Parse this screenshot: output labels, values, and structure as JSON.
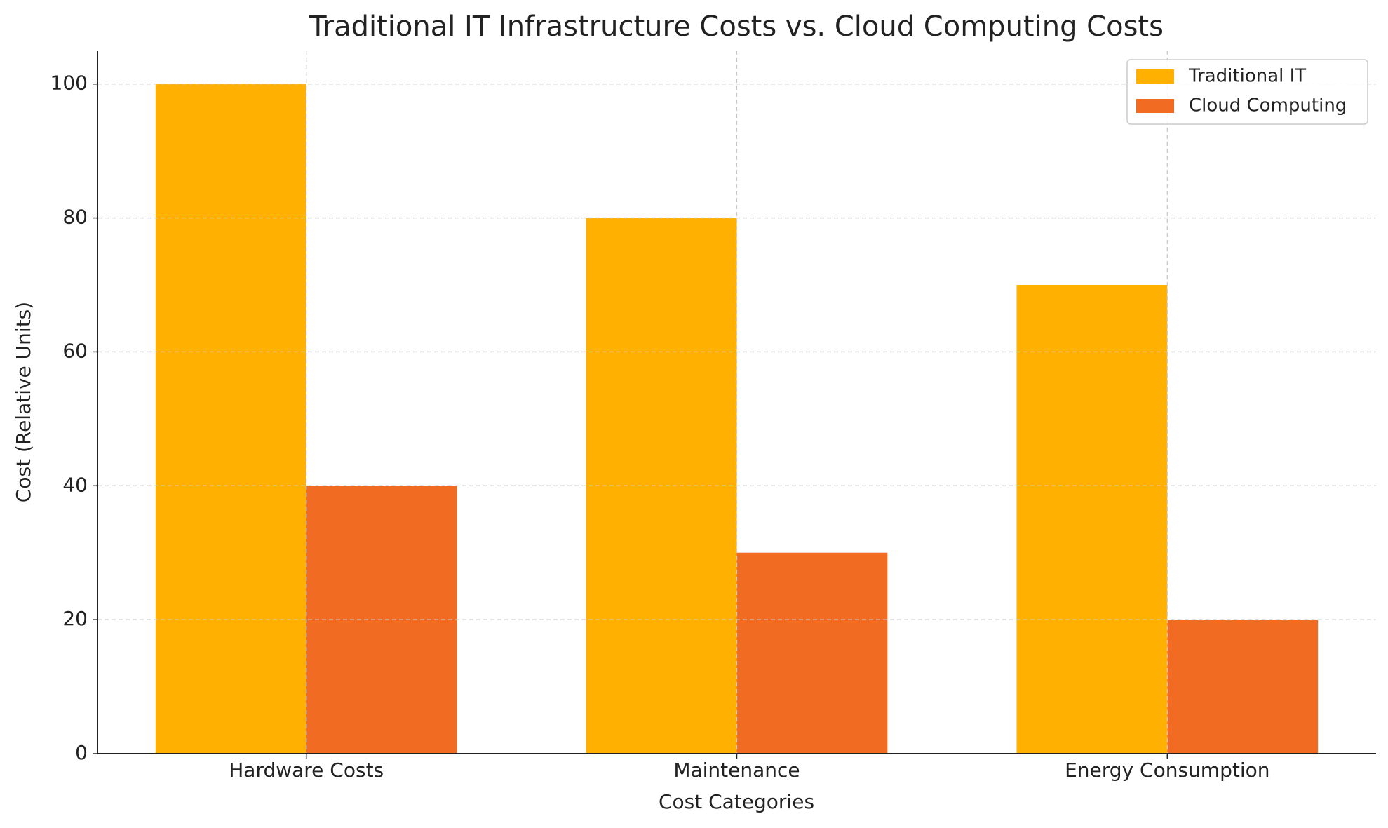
{
  "chart_data": {
    "type": "bar",
    "title": "Traditional IT Infrastructure Costs vs. Cloud Computing Costs",
    "x_label": "Cost Categories",
    "y_label": "Cost (Relative Units)",
    "categories": [
      "Hardware Costs",
      "Maintenance",
      "Energy Consumption"
    ],
    "series": [
      {
        "name": "Traditional IT",
        "color": "#ffb000",
        "values": [
          100,
          80,
          70
        ]
      },
      {
        "name": "Cloud Computing",
        "color": "#f26b23",
        "values": [
          40,
          30,
          20
        ]
      }
    ],
    "ylim": [
      0,
      105
    ],
    "yticks": [
      0,
      20,
      40,
      60,
      80,
      100
    ],
    "grid": true,
    "legend": "upper right"
  }
}
